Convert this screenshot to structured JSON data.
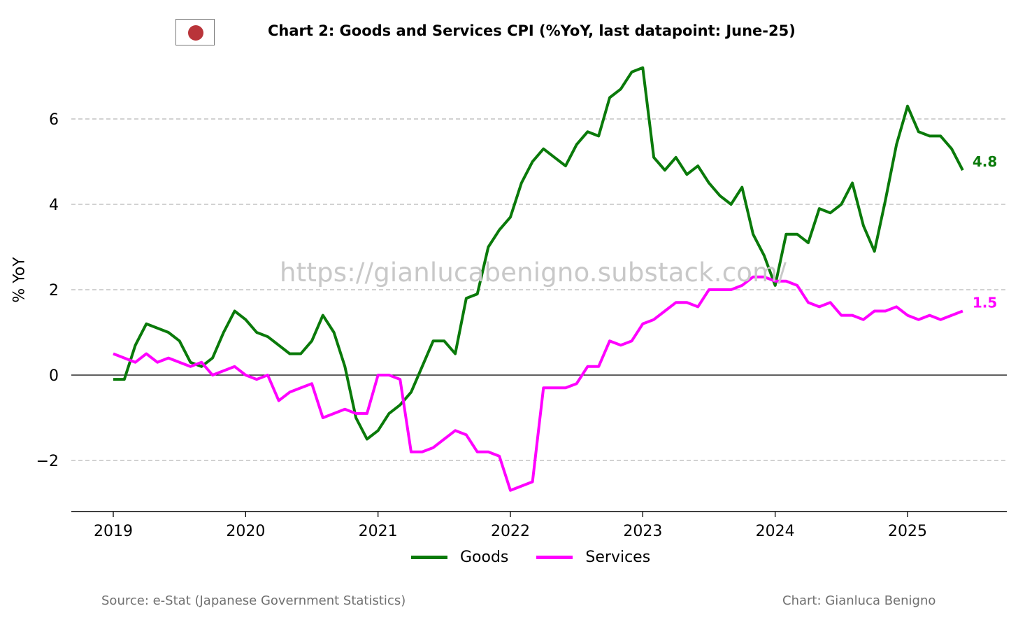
{
  "chart_data": {
    "type": "line",
    "title": "Chart 2: Goods and Services CPI (%YoY, last datapoint: June-25)",
    "ylabel": "% YoY",
    "xlabel": "",
    "x_start": "2019-01",
    "ylim": [
      -3.2,
      7.5
    ],
    "xlim": [
      2018.68,
      2025.74
    ],
    "yticks": [
      -2,
      0,
      2,
      4,
      6
    ],
    "ytick_labels": [
      "−2",
      "0",
      "2",
      "4",
      "6"
    ],
    "xticks": [
      2019,
      2020,
      2021,
      2022,
      2023,
      2024,
      2025
    ],
    "xtick_labels": [
      "2019",
      "2020",
      "2021",
      "2022",
      "2023",
      "2024",
      "2025"
    ],
    "grid": "horizontal dashed",
    "legend": "bottom-center",
    "series": [
      {
        "name": "Goods",
        "color": "#0a7a0a",
        "end_label": "4.8",
        "values": [
          -0.1,
          -0.1,
          0.7,
          1.2,
          1.1,
          1.0,
          0.8,
          0.3,
          0.2,
          0.4,
          1.0,
          1.5,
          1.3,
          1.0,
          0.9,
          0.7,
          0.5,
          0.5,
          0.8,
          1.4,
          1.0,
          0.2,
          -1.0,
          -1.5,
          -1.3,
          -0.9,
          -0.7,
          -0.4,
          0.2,
          0.8,
          0.8,
          0.5,
          1.8,
          1.9,
          3.0,
          3.4,
          3.7,
          4.5,
          5.0,
          5.3,
          5.1,
          4.9,
          5.4,
          5.7,
          5.6,
          6.5,
          6.7,
          7.1,
          7.2,
          5.1,
          4.8,
          5.1,
          4.7,
          4.9,
          4.5,
          4.2,
          4.0,
          4.4,
          3.3,
          2.8,
          2.1,
          3.3,
          3.3,
          3.1,
          3.9,
          3.8,
          4.0,
          4.5,
          3.5,
          2.9,
          4.1,
          5.4,
          6.3,
          5.7,
          5.6,
          5.6,
          5.3,
          4.8
        ]
      },
      {
        "name": "Services",
        "color": "#ff00ff",
        "end_label": "1.5",
        "values": [
          0.5,
          0.4,
          0.3,
          0.5,
          0.3,
          0.4,
          0.3,
          0.2,
          0.3,
          0.0,
          0.1,
          0.2,
          0.0,
          -0.1,
          0.0,
          -0.6,
          -0.4,
          -0.3,
          -0.2,
          -1.0,
          -0.9,
          -0.8,
          -0.9,
          -0.9,
          0.0,
          0.0,
          -0.1,
          -1.8,
          -1.8,
          -1.7,
          -1.5,
          -1.3,
          -1.4,
          -1.8,
          -1.8,
          -1.9,
          -2.7,
          -2.6,
          -2.5,
          -0.3,
          -0.3,
          -0.3,
          -0.2,
          0.2,
          0.2,
          0.8,
          0.7,
          0.8,
          1.2,
          1.3,
          1.5,
          1.7,
          1.7,
          1.6,
          2.0,
          2.0,
          2.0,
          2.1,
          2.3,
          2.3,
          2.2,
          2.2,
          2.1,
          1.7,
          1.6,
          1.7,
          1.4,
          1.4,
          1.3,
          1.5,
          1.5,
          1.6,
          1.4,
          1.3,
          1.4,
          1.3,
          1.4,
          1.5
        ]
      }
    ]
  },
  "watermark": "https://gianlucabenigno.substack.com/",
  "source": "Source: e-Stat (Japanese Government Statistics)",
  "credit": "Chart: Gianluca Benigno",
  "flag_icon": "japan-flag-icon"
}
